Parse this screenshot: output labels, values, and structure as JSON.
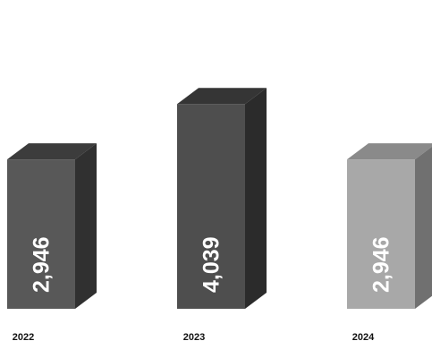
{
  "chart_data": {
    "type": "bar",
    "categories": [
      "2022",
      "2023",
      "2024"
    ],
    "values": [
      2946,
      4039,
      2946
    ],
    "data_labels": [
      "2,946",
      "4,039",
      "2,946"
    ],
    "grid": false,
    "legend": "none",
    "colors": {
      "bars": [
        "#585858",
        "#4e4e4e",
        "#a8a8a8"
      ],
      "top": [
        "#3c3c3c",
        "#353535",
        "#8a8a8a"
      ],
      "side": [
        "#303030",
        "#2b2b2b",
        "#707070"
      ]
    }
  }
}
